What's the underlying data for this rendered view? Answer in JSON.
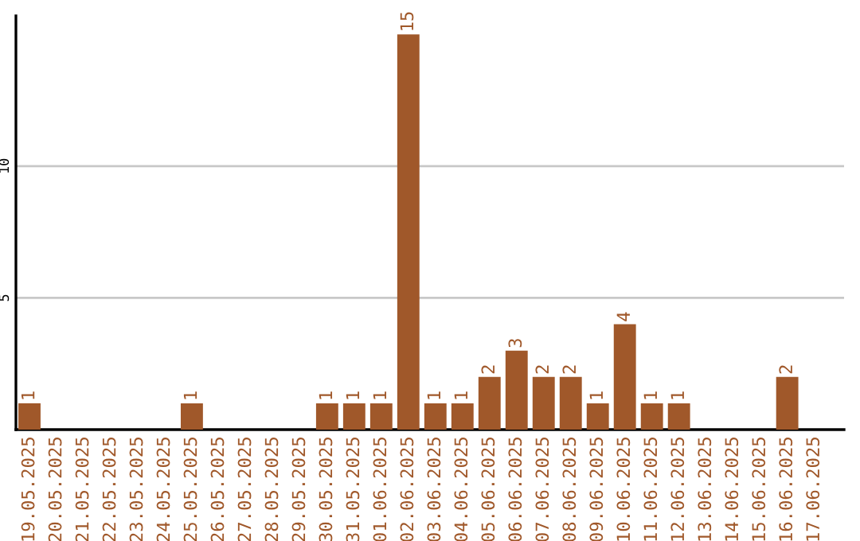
{
  "chart_data": {
    "type": "bar",
    "categories": [
      "19.05.2025",
      "20.05.2025",
      "21.05.2025",
      "22.05.2025",
      "23.05.2025",
      "24.05.2025",
      "25.05.2025",
      "26.05.2025",
      "27.05.2025",
      "28.05.2025",
      "29.05.2025",
      "30.05.2025",
      "31.05.2025",
      "01.06.2025",
      "02.06.2025",
      "03.06.2025",
      "04.06.2025",
      "05.06.2025",
      "06.06.2025",
      "07.06.2025",
      "08.06.2025",
      "09.06.2025",
      "10.06.2025",
      "11.06.2025",
      "12.06.2025",
      "13.06.2025",
      "14.06.2025",
      "15.06.2025",
      "16.06.2025",
      "17.06.2025"
    ],
    "values": [
      1,
      0,
      0,
      0,
      0,
      0,
      1,
      0,
      0,
      0,
      0,
      1,
      1,
      1,
      15,
      1,
      1,
      2,
      3,
      2,
      2,
      1,
      4,
      1,
      1,
      0,
      0,
      0,
      2,
      0
    ],
    "value_labels": [
      "1",
      null,
      null,
      null,
      null,
      null,
      "1",
      null,
      null,
      null,
      null,
      "1",
      "1",
      "1",
      "15",
      "1",
      "1",
      "2",
      "3",
      "2",
      "2",
      "1",
      "4",
      "1",
      "1",
      null,
      null,
      null,
      "2",
      null
    ],
    "color": "#a0582a",
    "ylim": [
      0,
      15.7
    ],
    "yticks": [
      5,
      10
    ],
    "grid": "y",
    "legend": false
  }
}
